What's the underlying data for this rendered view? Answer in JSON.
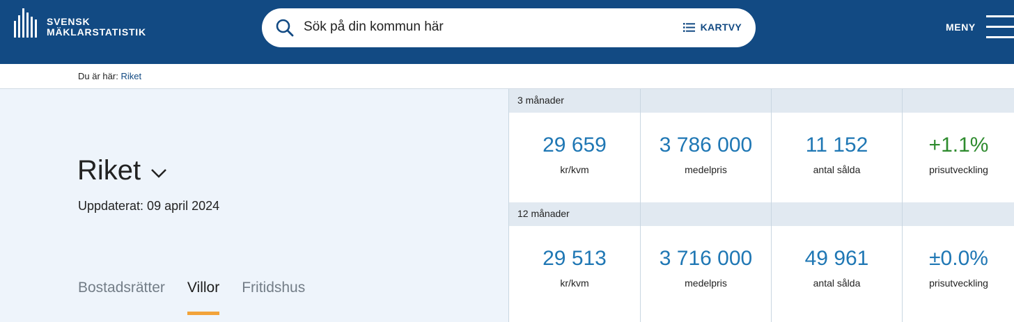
{
  "header": {
    "logo_line1": "SVENSK",
    "logo_line2": "MÄKLARSTATISTIK",
    "search_placeholder": "Sök på din kommun här",
    "kartvy_label": "KARTVY",
    "menu_label": "MENY"
  },
  "breadcrumb": {
    "prefix": "Du är här:",
    "current": "Riket"
  },
  "region": {
    "name": "Riket",
    "updated": "Uppdaterat: 09 april 2024"
  },
  "tabs": [
    {
      "label": "Bostadsrätter",
      "active": false
    },
    {
      "label": "Villor",
      "active": true
    },
    {
      "label": "Fritidshus",
      "active": false
    }
  ],
  "stats": {
    "period_3": {
      "label": "3 månader",
      "price_per_sqm": "29 659",
      "price_per_sqm_unit": "kr/kvm",
      "median_price": "3 786 000",
      "median_price_label": "medelpris",
      "sold": "11 152",
      "sold_label": "antal sålda",
      "change": "+1.1%",
      "change_label": "prisutveckling"
    },
    "period_12": {
      "label": "12 månader",
      "price_per_sqm": "29 513",
      "price_per_sqm_unit": "kr/kvm",
      "median_price": "3 716 000",
      "median_price_label": "medelpris",
      "sold": "49 961",
      "sold_label": "antal sålda",
      "change": "±0.0%",
      "change_label": "prisutveckling"
    }
  },
  "colors": {
    "header_bg": "#124a83",
    "stat_blue": "#1f77b4",
    "stat_green": "#2e8b2e",
    "tab_underline": "#f2a33a"
  }
}
